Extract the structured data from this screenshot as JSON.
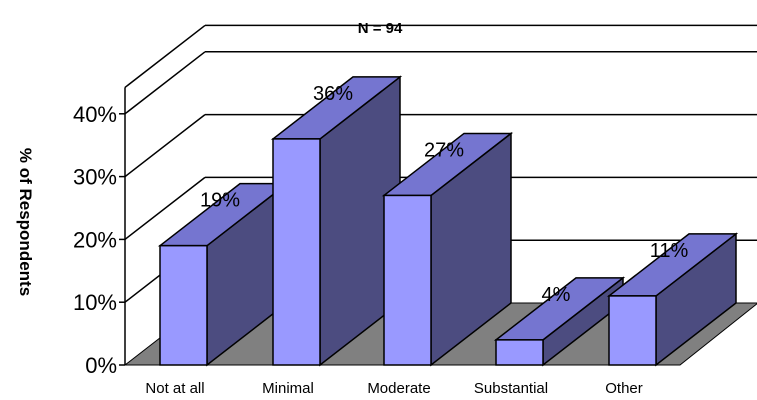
{
  "chart_data": {
    "type": "bar",
    "title": "N = 94",
    "ylabel": "% of Respondents",
    "xlabel": "",
    "categories": [
      "Not at all",
      "Minimal",
      "Moderate",
      "Substantial",
      "Other"
    ],
    "values": [
      19,
      36,
      27,
      4,
      11
    ],
    "data_labels": [
      "19%",
      "36%",
      "27%",
      "4%",
      "11%"
    ],
    "y_ticks": [
      "0%",
      "10%",
      "20%",
      "30%",
      "40%"
    ],
    "ylim": [
      0,
      40
    ],
    "grid": true,
    "legend": "none",
    "style": "3d",
    "colors": {
      "bar_front": "#9999ff",
      "bar_top": "#7575d0",
      "bar_side": "#4c4c80",
      "floor": "#808080",
      "grid": "#000000"
    }
  }
}
